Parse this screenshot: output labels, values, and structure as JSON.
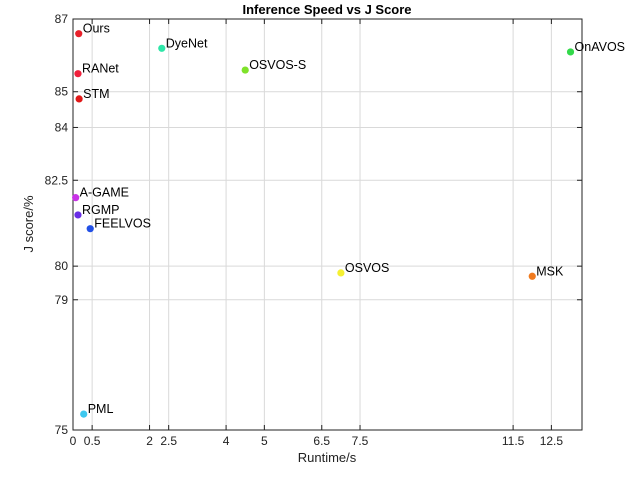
{
  "chart_data": {
    "type": "scatter",
    "title": "Inference Speed vs J Score",
    "xlabel": "Runtime/s",
    "ylabel": "J score/%",
    "xlim": [
      0,
      13.3
    ],
    "ylim": [
      75,
      87
    ],
    "y_scale": "nonlinear (spaced by score squared)",
    "grid": true,
    "xticks": [
      {
        "value": 0,
        "label": "0"
      },
      {
        "value": 0.5,
        "label": "0.5"
      },
      {
        "value": 2,
        "label": "2"
      },
      {
        "value": 2.5,
        "label": "2.5"
      },
      {
        "value": 4,
        "label": "4"
      },
      {
        "value": 5,
        "label": "5"
      },
      {
        "value": 6.5,
        "label": "6.5"
      },
      {
        "value": 7.5,
        "label": "7.5"
      },
      {
        "value": 11.5,
        "label": "11.5"
      },
      {
        "value": 12.5,
        "label": "12.5"
      }
    ],
    "yticks": [
      {
        "value": 75,
        "label": "75"
      },
      {
        "value": 79,
        "label": "79"
      },
      {
        "value": 80,
        "label": "80"
      },
      {
        "value": 82.5,
        "label": "82.5"
      },
      {
        "value": 84,
        "label": "84"
      },
      {
        "value": 85,
        "label": "85"
      },
      {
        "value": 87,
        "label": "87"
      }
    ],
    "points": [
      {
        "name": "Ours",
        "x": 0.15,
        "y": 86.6,
        "color": "#e8202a"
      },
      {
        "name": "RANet",
        "x": 0.13,
        "y": 85.5,
        "color": "#f0203c"
      },
      {
        "name": "STM",
        "x": 0.16,
        "y": 84.8,
        "color": "#e01818"
      },
      {
        "name": "DyeNet",
        "x": 2.32,
        "y": 86.2,
        "color": "#2ee6a8"
      },
      {
        "name": "OSVOS-S",
        "x": 4.5,
        "y": 85.6,
        "color": "#7fe22a"
      },
      {
        "name": "OnAVOS",
        "x": 13.0,
        "y": 86.1,
        "color": "#33d94a"
      },
      {
        "name": "A-GAME",
        "x": 0.07,
        "y": 82.0,
        "color": "#c832e6"
      },
      {
        "name": "RGMP",
        "x": 0.13,
        "y": 81.5,
        "color": "#6a2ee6"
      },
      {
        "name": "FEELVOS",
        "x": 0.45,
        "y": 81.1,
        "color": "#2250e6"
      },
      {
        "name": "OSVOS",
        "x": 7.0,
        "y": 79.8,
        "color": "#f5f032"
      },
      {
        "name": "MSK",
        "x": 12.0,
        "y": 79.7,
        "color": "#f07a1e"
      },
      {
        "name": "PML",
        "x": 0.28,
        "y": 75.5,
        "color": "#3ec8ef"
      }
    ]
  }
}
